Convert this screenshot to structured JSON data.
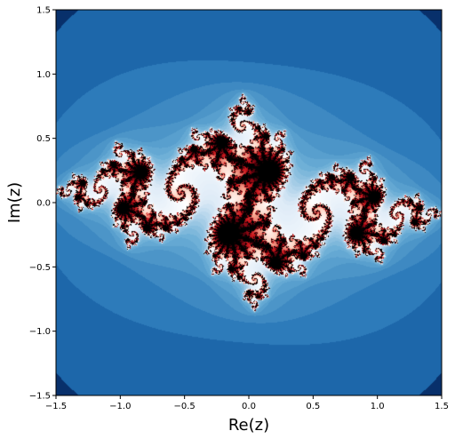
{
  "chart_data": {
    "type": "heatmap",
    "title": "",
    "xlabel": "Re(z)",
    "ylabel": "Im(z)",
    "xlim": [
      -1.5,
      1.5
    ],
    "ylim": [
      -1.5,
      1.5
    ],
    "x_ticks": [
      -1.5,
      -1.0,
      -0.5,
      0.0,
      0.5,
      1.0,
      1.5
    ],
    "y_ticks": [
      -1.5,
      -1.0,
      -0.5,
      0.0,
      0.5,
      1.0,
      1.5
    ],
    "x_tick_labels": [
      "−1.5",
      "−1.0",
      "−0.5",
      "0.0",
      "0.5",
      "1.0",
      "1.5"
    ],
    "y_tick_labels": [
      "−1.5",
      "−1.0",
      "−0.5",
      "0.0",
      "0.5",
      "1.0",
      "1.5"
    ],
    "grid": false,
    "colormap": [
      "#08306b",
      "#2171b5",
      "#6baed6",
      "#deebf7",
      "#ffffff",
      "#fcbba1",
      "#cb181d",
      "#67000d",
      "#000000"
    ],
    "background_color": "#08306b"
  }
}
